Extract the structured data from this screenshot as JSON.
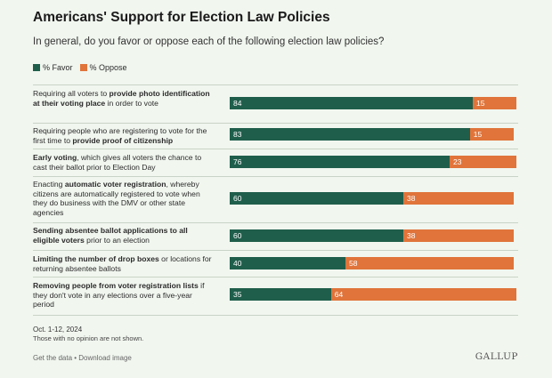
{
  "title": "Americans' Support for Election Law Policies",
  "subtitle": "In general, do you favor or oppose each of the following election law policies?",
  "colors": {
    "favor": "#1f5e4b",
    "oppose": "#e0743a",
    "background": "#f1f6ef"
  },
  "chart_data": {
    "type": "bar",
    "orientation": "horizontal",
    "stacked": true,
    "xlim": [
      0,
      100
    ],
    "legend_position": "top-left",
    "categories": [
      [
        {
          "t": "Requiring all voters to ",
          "b": false
        },
        {
          "t": "provide photo identification at their voting place",
          "b": true
        },
        {
          "t": " in order to vote",
          "b": false
        }
      ],
      [
        {
          "t": "Requiring people who are registering to vote for the first time to ",
          "b": false
        },
        {
          "t": "provide proof of citizenship",
          "b": true
        }
      ],
      [
        {
          "t": "Early voting",
          "b": true
        },
        {
          "t": ", which gives all voters the chance to cast their ballot prior to Election Day",
          "b": false
        }
      ],
      [
        {
          "t": "Enacting ",
          "b": false
        },
        {
          "t": "automatic voter registration",
          "b": true
        },
        {
          "t": ", whereby citizens are automatically registered to vote when they do business with the DMV or other state agencies",
          "b": false
        }
      ],
      [
        {
          "t": "Sending absentee ballot applications to all eligible voters",
          "b": true
        },
        {
          "t": " prior to an election",
          "b": false
        }
      ],
      [
        {
          "t": "Limiting the number of drop boxes",
          "b": true
        },
        {
          "t": " or locations for returning absentee ballots",
          "b": false
        }
      ],
      [
        {
          "t": "Removing people from voter registration lists",
          "b": true
        },
        {
          "t": " if they don't vote in any elections over a five-year period",
          "b": false
        }
      ]
    ],
    "series": [
      {
        "name": "% Favor",
        "values": [
          84,
          83,
          76,
          60,
          60,
          40,
          35
        ]
      },
      {
        "name": "% Oppose",
        "values": [
          15,
          15,
          23,
          38,
          38,
          58,
          64
        ]
      }
    ]
  },
  "footer": {
    "date": "Oct. 1-12, 2024",
    "note": "Those with no opinion are not shown.",
    "get_data": "Get the data",
    "separator": " • ",
    "download": "Download image",
    "brand": "GALLUP"
  }
}
